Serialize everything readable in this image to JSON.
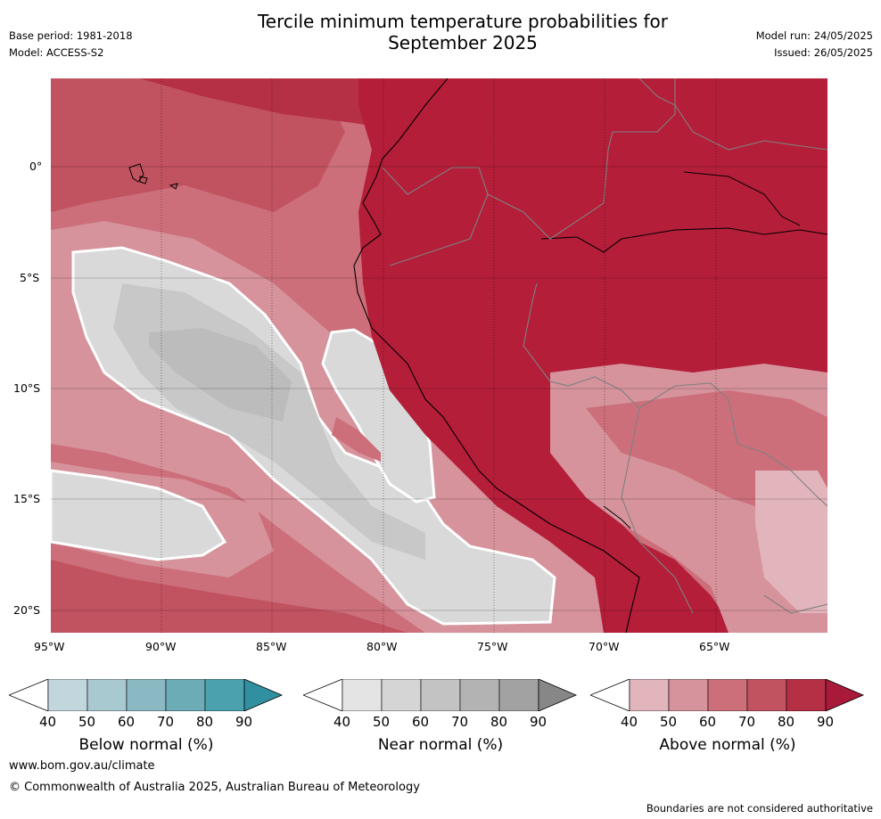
{
  "header": {
    "title_line1": "Tercile minimum temperature probabilities for",
    "title_line2": "September 2025",
    "base_period": "Base period: 1981-2018",
    "model": "Model: ACCESS-S2",
    "model_run": "Model run: 24/05/2025",
    "issued": "Issued: 26/05/2025"
  },
  "map": {
    "lat_labels": [
      "0°",
      "5°S",
      "10°S",
      "15°S",
      "20°S"
    ],
    "lon_labels": [
      "95°W",
      "90°W",
      "85°W",
      "80°W",
      "75°W",
      "70°W",
      "65°W"
    ],
    "colors": {
      "ocean_dominant": "#cc6674",
      "land_dominant": "#b41e39",
      "near_normal": "#d9d9d9",
      "contour_white": "#ffffff",
      "coastline": "#000000",
      "border": "#808080"
    }
  },
  "colorbars": [
    {
      "label": "Below normal (%)",
      "ticks": [
        "40",
        "50",
        "60",
        "70",
        "80",
        "90"
      ],
      "colors": [
        "#c2d7dd",
        "#a8c9cf",
        "#8bb9c3",
        "#6cacb6",
        "#4ba2ae",
        "#3090a0"
      ]
    },
    {
      "label": "Near normal (%)",
      "ticks": [
        "40",
        "50",
        "60",
        "70",
        "80",
        "90"
      ],
      "colors": [
        "#e4e4e4",
        "#d5d5d5",
        "#c3c3c3",
        "#b3b3b3",
        "#a2a2a2",
        "#878787"
      ]
    },
    {
      "label": "Above normal (%)",
      "ticks": [
        "40",
        "50",
        "60",
        "70",
        "80",
        "90"
      ],
      "colors": [
        "#e1b5bb",
        "#d6939c",
        "#cc6f7a",
        "#c15360",
        "#b52f45",
        "#a8193a"
      ]
    }
  ],
  "footer": {
    "website": "www.bom.gov.au/climate",
    "copyright": "© Commonwealth of Australia 2025, Australian Bureau of Meteorology",
    "disclaimer": "Boundaries are not considered authoritative"
  }
}
